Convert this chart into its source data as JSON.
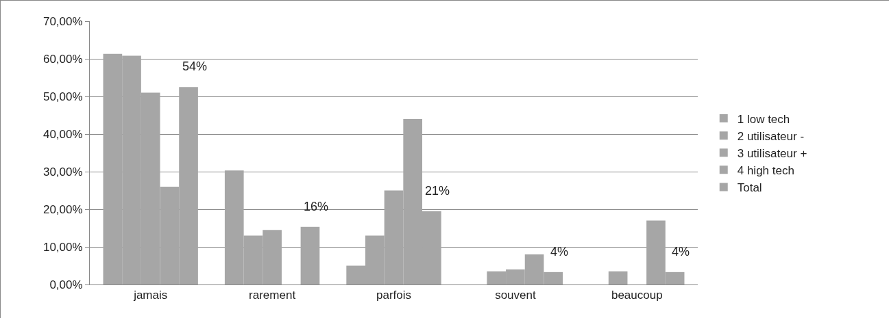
{
  "chart_data": {
    "type": "bar",
    "categories": [
      "jamais",
      "rarement",
      "parfois",
      "souvent",
      "beaucoup"
    ],
    "series": [
      {
        "name": "1 low tech",
        "color": "#a6a6a6",
        "values": [
          61.3,
          30.3,
          5,
          0,
          0
        ]
      },
      {
        "name": "2 utilisateur -",
        "color": "#a6a6a6",
        "values": [
          60.8,
          13,
          13,
          3.5,
          3.5
        ]
      },
      {
        "name": "3 utilisateur +",
        "color": "#a6a6a6",
        "values": [
          51,
          14.5,
          25,
          4,
          0
        ]
      },
      {
        "name": "4 high tech",
        "color": "#a6a6a6",
        "values": [
          26,
          0,
          44,
          8,
          17
        ]
      },
      {
        "name": "Total",
        "color": "#a6a6a6",
        "values": [
          52.5,
          15.3,
          19.5,
          3.3,
          3.3
        ]
      }
    ],
    "ylim": [
      0,
      70
    ],
    "yticks": [
      {
        "value": 0,
        "label": "0,00%"
      },
      {
        "value": 10,
        "label": "10,00%"
      },
      {
        "value": 20,
        "label": "20,00%"
      },
      {
        "value": 30,
        "label": "30,00%"
      },
      {
        "value": 40,
        "label": "40,00%"
      },
      {
        "value": 50,
        "label": "50,00%"
      },
      {
        "value": 60,
        "label": "60,00%"
      },
      {
        "value": 70,
        "label": "70,00%"
      }
    ],
    "annotations": [
      "54%",
      "16%",
      "21%",
      "4%",
      "4%"
    ],
    "grid": "y",
    "legend": "right"
  }
}
